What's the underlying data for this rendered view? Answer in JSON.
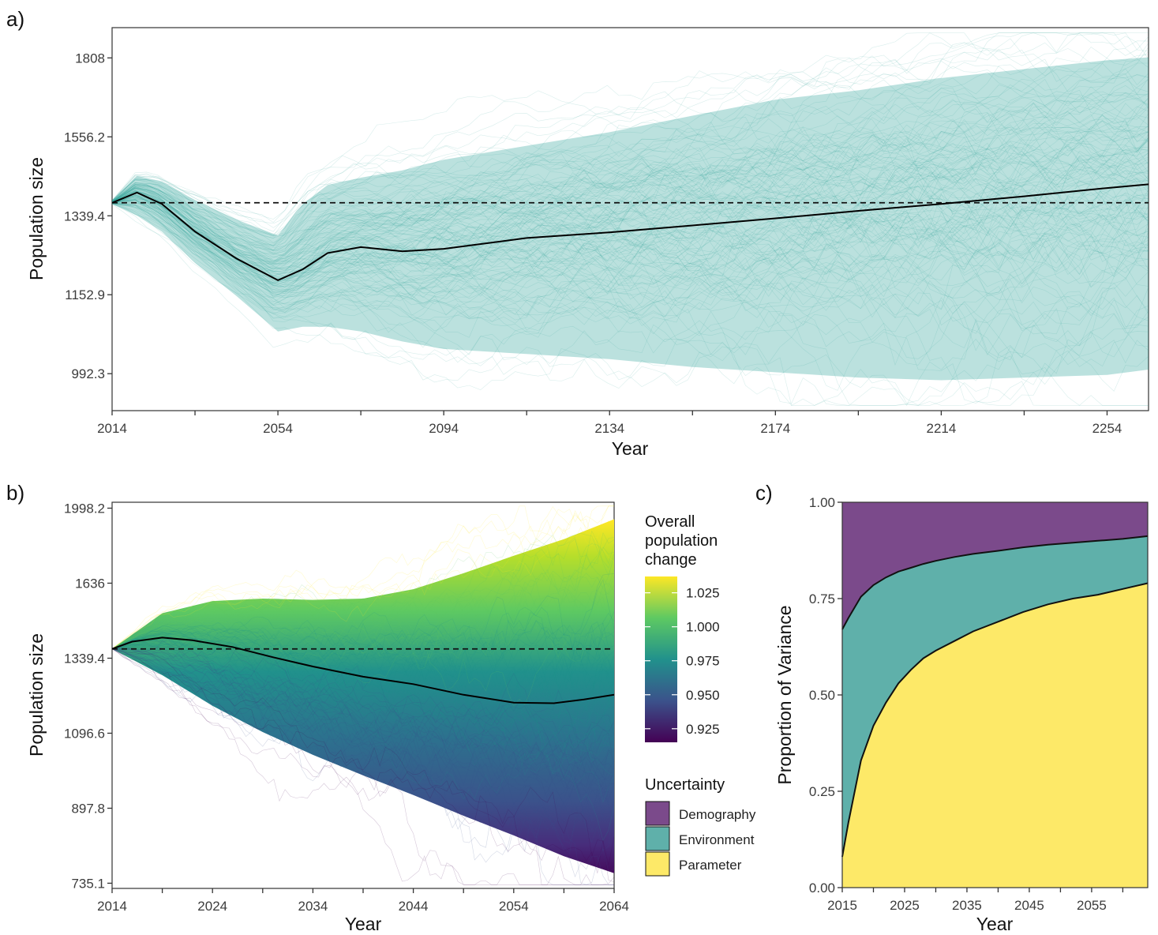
{
  "panels": {
    "a": "a)",
    "b": "b)",
    "c": "c)"
  },
  "colors": {
    "ribbon_a": "#2aa198",
    "mean_line": "#000000",
    "demography": "#7b4a8b",
    "environment": "#5fb0aa",
    "parameter": "#fde968",
    "viridis": [
      "#440154",
      "#3b528b",
      "#21918c",
      "#5ec962",
      "#fde725"
    ]
  },
  "legend_colorbar": {
    "title_lines": [
      "Overall",
      "population",
      "change"
    ],
    "ticks": [
      "1.025",
      "1.000",
      "0.975",
      "0.950",
      "0.925"
    ],
    "tick_values": [
      1.025,
      1.0,
      0.975,
      0.95,
      0.925
    ],
    "range": [
      0.915,
      1.037
    ]
  },
  "legend_uncertainty": {
    "title": "Uncertainty",
    "items": [
      {
        "label": "Demography",
        "color": "#7b4a8b"
      },
      {
        "label": "Environment",
        "color": "#5fb0aa"
      },
      {
        "label": "Parameter",
        "color": "#fde968"
      }
    ]
  },
  "chart_data": [
    {
      "id": "a",
      "type": "line",
      "xlabel": "Year",
      "ylabel": "Population size",
      "xlim": [
        2014,
        2264
      ],
      "ylim": [
        925,
        1915
      ],
      "log_y": true,
      "x_ticks": [
        "2014",
        "2054",
        "2094",
        "2134",
        "2174",
        "2214",
        "2254"
      ],
      "x_tick_values": [
        2014,
        2054,
        2094,
        2134,
        2174,
        2214,
        2254
      ],
      "x_minor_ticks": [
        2034,
        2074,
        2114,
        2154,
        2194,
        2234
      ],
      "y_ticks": [
        "992.3",
        "1152.9",
        "1339.4",
        "1556.2",
        "1808"
      ],
      "y_tick_values": [
        992.3,
        1152.9,
        1339.4,
        1556.2,
        1808
      ],
      "reference_line": 1373,
      "mean": {
        "x": [
          2014,
          2020,
          2026,
          2034,
          2044,
          2054,
          2060,
          2066,
          2074,
          2084,
          2094,
          2114,
          2134,
          2154,
          2174,
          2194,
          2214,
          2234,
          2254,
          2264
        ],
        "y": [
          1373,
          1400,
          1370,
          1300,
          1235,
          1185,
          1210,
          1248,
          1262,
          1252,
          1258,
          1284,
          1298,
          1315,
          1333,
          1352,
          1370,
          1390,
          1412,
          1422
        ]
      },
      "band_lower": {
        "x": [
          2014,
          2020,
          2026,
          2034,
          2044,
          2054,
          2060,
          2066,
          2074,
          2084,
          2094,
          2114,
          2134,
          2154,
          2174,
          2194,
          2214,
          2234,
          2254,
          2264
        ],
        "y": [
          1370,
          1340,
          1300,
          1225,
          1150,
          1075,
          1085,
          1085,
          1075,
          1055,
          1040,
          1030,
          1020,
          1005,
          995,
          985,
          980,
          985,
          990,
          1000
        ]
      },
      "band_upper": {
        "x": [
          2014,
          2020,
          2026,
          2034,
          2044,
          2054,
          2060,
          2066,
          2074,
          2084,
          2094,
          2114,
          2134,
          2154,
          2174,
          2194,
          2214,
          2234,
          2254,
          2264
        ],
        "y": [
          1378,
          1445,
          1430,
          1380,
          1330,
          1290,
          1370,
          1420,
          1440,
          1460,
          1490,
          1530,
          1570,
          1620,
          1670,
          1700,
          1740,
          1770,
          1800,
          1810
        ]
      }
    },
    {
      "id": "b",
      "type": "line",
      "xlabel": "Year",
      "ylabel": "Population size",
      "xlim": [
        2014,
        2064
      ],
      "ylim": [
        725,
        2030
      ],
      "log_y": true,
      "x_ticks": [
        "2014",
        "2024",
        "2034",
        "2044",
        "2054",
        "2064"
      ],
      "x_tick_values": [
        2014,
        2024,
        2034,
        2044,
        2054,
        2064
      ],
      "x_minor_ticks": [
        2019,
        2029,
        2039,
        2049,
        2059
      ],
      "y_ticks": [
        "735.1",
        "897.8",
        "1096.6",
        "1339.4",
        "1636",
        "1998.2"
      ],
      "y_tick_values": [
        735.1,
        897.8,
        1096.6,
        1339.4,
        1636,
        1998.2
      ],
      "reference_line": 1373,
      "mean": {
        "x": [
          2014,
          2016,
          2019,
          2022,
          2026,
          2030,
          2034,
          2039,
          2044,
          2049,
          2054,
          2058,
          2061,
          2064
        ],
        "y": [
          1373,
          1400,
          1415,
          1405,
          1380,
          1343,
          1310,
          1275,
          1250,
          1215,
          1190,
          1188,
          1200,
          1215
        ]
      },
      "band_lower": {
        "x": [
          2014,
          2019,
          2024,
          2029,
          2034,
          2039,
          2044,
          2049,
          2054,
          2059,
          2064
        ],
        "y": [
          1373,
          1280,
          1180,
          1100,
          1035,
          980,
          930,
          880,
          835,
          790,
          755
        ]
      },
      "band_upper": {
        "x": [
          2014,
          2019,
          2024,
          2029,
          2034,
          2039,
          2044,
          2049,
          2054,
          2059,
          2064
        ],
        "y": [
          1373,
          1510,
          1560,
          1570,
          1565,
          1570,
          1610,
          1680,
          1760,
          1840,
          1940
        ]
      }
    },
    {
      "id": "c",
      "type": "area",
      "xlabel": "Year",
      "ylabel": "Proportion of Variance",
      "xlim": [
        2015,
        2064
      ],
      "ylim": [
        0,
        1
      ],
      "x_ticks": [
        "2015",
        "2025",
        "2035",
        "2045",
        "2055"
      ],
      "x_tick_values": [
        2015,
        2025,
        2035,
        2045,
        2055
      ],
      "x_minor_ticks": [
        2020,
        2030,
        2040,
        2050,
        2060
      ],
      "y_ticks": [
        "0.00",
        "0.25",
        "0.50",
        "0.75",
        "1.00"
      ],
      "y_tick_values": [
        0,
        0.25,
        0.5,
        0.75,
        1.0
      ],
      "x": [
        2015,
        2016,
        2018,
        2020,
        2022,
        2024,
        2026,
        2028,
        2030,
        2033,
        2036,
        2040,
        2044,
        2048,
        2052,
        2056,
        2060,
        2064
      ],
      "parameter": [
        0.08,
        0.17,
        0.33,
        0.42,
        0.48,
        0.53,
        0.565,
        0.595,
        0.615,
        0.64,
        0.665,
        0.69,
        0.715,
        0.735,
        0.75,
        0.76,
        0.775,
        0.79
      ],
      "parameter_plus_environment": [
        0.67,
        0.7,
        0.755,
        0.785,
        0.805,
        0.82,
        0.83,
        0.84,
        0.848,
        0.858,
        0.866,
        0.874,
        0.883,
        0.89,
        0.895,
        0.9,
        0.905,
        0.912
      ]
    }
  ]
}
